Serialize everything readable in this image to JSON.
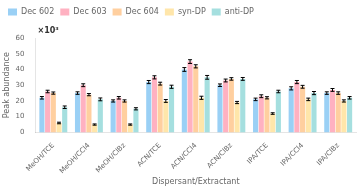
{
  "chart_data": {
    "type": "bar",
    "categories": [
      "MeOH/TCE",
      "MeOH/CCl4",
      "MeOH/ClBz",
      "ACN/TCE",
      "ACN/CCl4",
      "ACN/ClBz",
      "IPA/TCE",
      "IPA/CCl4",
      "IPA/ClBz"
    ],
    "series": [
      {
        "name": "Dec 602",
        "values": [
          22,
          25,
          20,
          32,
          40,
          30,
          21,
          28,
          25
        ],
        "errors": [
          0.8,
          0.8,
          0.7,
          1.0,
          1.2,
          0.8,
          0.8,
          1.0,
          0.8
        ]
      },
      {
        "name": "Dec 603",
        "values": [
          26,
          30,
          22,
          35,
          45,
          33,
          23,
          32,
          27
        ],
        "errors": [
          0.8,
          0.9,
          0.8,
          1.0,
          1.2,
          0.9,
          0.9,
          1.0,
          0.9
        ]
      },
      {
        "name": "Dec 604",
        "values": [
          25,
          24,
          20,
          31,
          42,
          34,
          22,
          29,
          25
        ],
        "errors": [
          0.7,
          0.7,
          0.7,
          0.9,
          1.0,
          0.8,
          0.7,
          0.9,
          0.8
        ]
      },
      {
        "name": "syn-DP",
        "values": [
          6,
          5,
          5,
          20,
          22,
          19,
          12,
          21,
          20
        ],
        "errors": [
          0.5,
          0.4,
          0.4,
          0.9,
          1.0,
          0.7,
          0.5,
          0.8,
          0.7
        ]
      },
      {
        "name": "anti-DP",
        "values": [
          16,
          21,
          15,
          29,
          35,
          34,
          26,
          25,
          22
        ],
        "errors": [
          0.8,
          0.9,
          0.7,
          1.0,
          1.2,
          0.9,
          0.8,
          1.0,
          0.8
        ]
      }
    ],
    "xlabel": "Dispersant/Extractant",
    "ylabel": "Peak abundance",
    "annotations": [
      "×10³"
    ],
    "ylim": [
      0,
      60
    ],
    "yticks": [
      0,
      10,
      20,
      30,
      40,
      50,
      60
    ],
    "grid": false,
    "legend": "upper left"
  }
}
